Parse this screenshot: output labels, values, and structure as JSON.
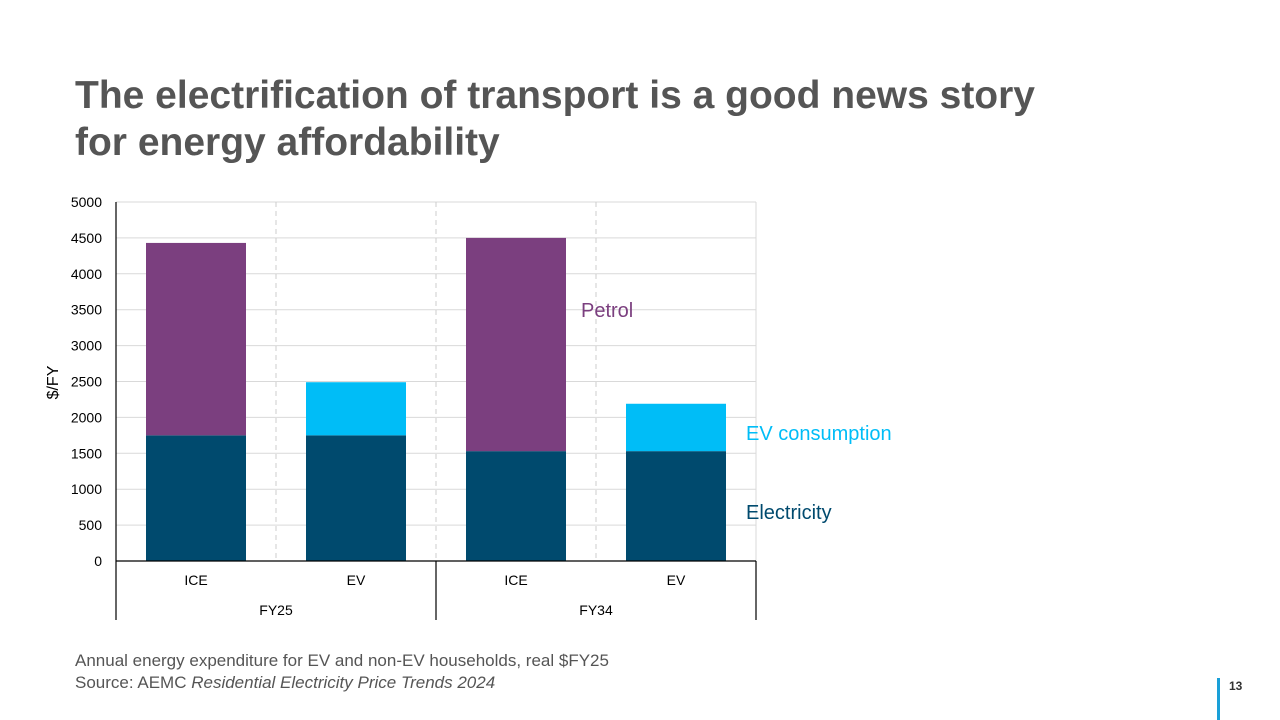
{
  "slide": {
    "title_lines": [
      "The electrification of transport is a good news story",
      "for energy affordability"
    ],
    "caption": "Annual energy expenditure for EV and non-EV households, real $FY25",
    "source_prefix": "Source: AEMC ",
    "source_title": "Residential Electricity Price Trends 2024",
    "page_number": "13",
    "accent_color": "#1aa0d8"
  },
  "chart_data": {
    "type": "bar",
    "stacked": true,
    "ylabel": "$/FY",
    "ylim": [
      0,
      5000
    ],
    "y_ticks": [
      0,
      500,
      1000,
      1500,
      2000,
      2500,
      3000,
      3500,
      4000,
      4500,
      5000
    ],
    "categories": [
      "ICE",
      "EV",
      "ICE",
      "EV"
    ],
    "groups": [
      {
        "label": "FY25",
        "categories": [
          "ICE",
          "EV"
        ]
      },
      {
        "label": "FY34",
        "categories": [
          "ICE",
          "EV"
        ]
      }
    ],
    "series": [
      {
        "name": "Electricity",
        "color": "#004a6e",
        "values": [
          1750,
          1750,
          1530,
          1530
        ]
      },
      {
        "name": "EV consumption",
        "color": "#00bdf7",
        "values": [
          0,
          740,
          0,
          660
        ]
      },
      {
        "name": "Petrol",
        "color": "#7b3f7f",
        "values": [
          2680,
          0,
          2970,
          0
        ]
      }
    ],
    "grid": true,
    "legend": "direct labels to the right of the bars"
  }
}
